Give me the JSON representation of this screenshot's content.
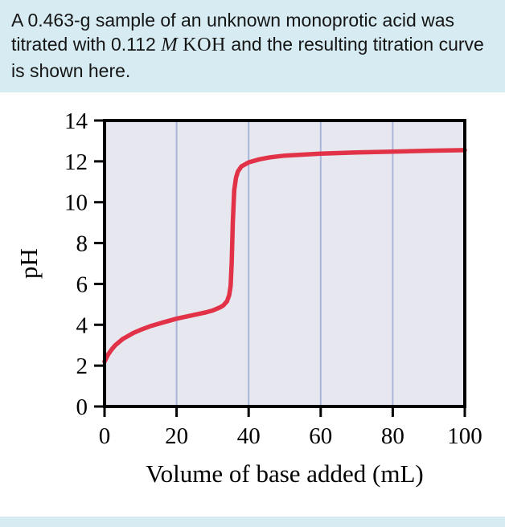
{
  "header": {
    "text_before": "A 0.463-g sample of an unknown monoprotic acid was titrated with 0.112 ",
    "molarity_symbol": "M",
    "compound": "KOH",
    "text_after": " and the resulting titration curve is shown here."
  },
  "colors": {
    "page_background": "#d7ecf2",
    "panel_background": "#ffffff",
    "text": "#151515"
  },
  "chart_data": {
    "type": "line",
    "title": "",
    "xlabel": "Volume of base added (mL)",
    "ylabel": "pH",
    "xlim": [
      0,
      100
    ],
    "ylim": [
      0,
      14
    ],
    "x_ticks": [
      0,
      20,
      40,
      60,
      80,
      100
    ],
    "y_ticks": [
      0,
      2,
      4,
      6,
      8,
      10,
      12,
      14
    ],
    "grid": {
      "vertical_at": [
        20,
        40,
        60,
        80
      ],
      "color": "#a9b6da"
    },
    "plot_bg": "#e7e7ef",
    "axis_color": "#000000",
    "legend": "none",
    "equivalence_volume_mL": 35,
    "series": [
      {
        "name": "titration-curve",
        "color": "#e23247",
        "points": [
          [
            0,
            2.2
          ],
          [
            1,
            2.55
          ],
          [
            2,
            2.8
          ],
          [
            3,
            3.0
          ],
          [
            5,
            3.3
          ],
          [
            8,
            3.6
          ],
          [
            10,
            3.75
          ],
          [
            13,
            3.95
          ],
          [
            16,
            4.1
          ],
          [
            20,
            4.3
          ],
          [
            24,
            4.45
          ],
          [
            28,
            4.6
          ],
          [
            30,
            4.7
          ],
          [
            32,
            4.85
          ],
          [
            33,
            4.95
          ],
          [
            34,
            5.15
          ],
          [
            34.6,
            5.45
          ],
          [
            35,
            5.9
          ],
          [
            35.3,
            7.0
          ],
          [
            35.6,
            9.0
          ],
          [
            36,
            10.6
          ],
          [
            36.5,
            11.2
          ],
          [
            37,
            11.5
          ],
          [
            38,
            11.75
          ],
          [
            40,
            11.95
          ],
          [
            43,
            12.1
          ],
          [
            46,
            12.2
          ],
          [
            50,
            12.28
          ],
          [
            55,
            12.33
          ],
          [
            60,
            12.38
          ],
          [
            70,
            12.44
          ],
          [
            80,
            12.48
          ],
          [
            90,
            12.52
          ],
          [
            100,
            12.55
          ]
        ]
      }
    ]
  }
}
